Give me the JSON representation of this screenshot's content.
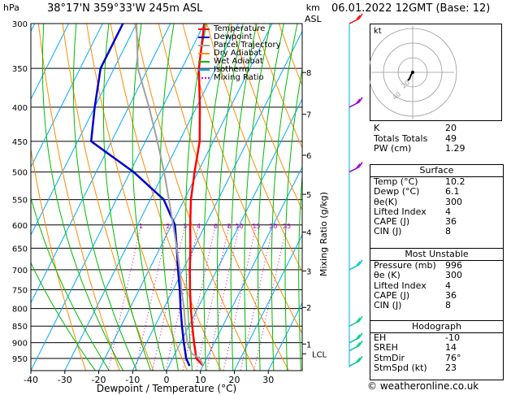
{
  "header": {
    "location": "38°17'N  359°33'W  245m  ASL",
    "date": "06.01.2022  12GMT  (Base: 12)",
    "hpa_label": "hPa",
    "km_label": "km",
    "asl_label": "ASL",
    "mixing_ratio_label": "Mixing Ratio (g/kg)"
  },
  "legend": [
    {
      "label": "Temperature",
      "color": "#ff0000",
      "style": "solid"
    },
    {
      "label": "Dewpoint",
      "color": "#0000cc",
      "style": "solid"
    },
    {
      "label": "Parcel Trajectory",
      "color": "#a0a0a0",
      "style": "solid"
    },
    {
      "label": "Dry Adiabat",
      "color": "#ff8c00",
      "style": "solid"
    },
    {
      "label": "Wet Adiabat",
      "color": "#00bb00",
      "style": "solid"
    },
    {
      "label": "Isotherm",
      "color": "#00aaff",
      "style": "solid"
    },
    {
      "label": "Mixing Ratio",
      "color": "#cc00cc",
      "style": "dotted"
    }
  ],
  "hodograph": {
    "unit_label": "kt",
    "ring_labels": [
      "20",
      "40"
    ]
  },
  "indices": [
    {
      "key": "K",
      "value": "20"
    },
    {
      "key": "Totals Totals",
      "value": "49"
    },
    {
      "key": "PW (cm)",
      "value": "1.29"
    }
  ],
  "surface": {
    "title": "Surface",
    "rows": [
      {
        "key": "Temp (°C)",
        "value": "10.2"
      },
      {
        "key": "Dewp (°C)",
        "value": "6.1"
      },
      {
        "key": "θe(K)",
        "value": "300"
      },
      {
        "key": "Lifted Index",
        "value": "4"
      },
      {
        "key": "CAPE (J)",
        "value": "36"
      },
      {
        "key": "CIN (J)",
        "value": "8"
      }
    ]
  },
  "most_unstable": {
    "title": "Most Unstable",
    "rows": [
      {
        "key": "Pressure (mb)",
        "value": "996"
      },
      {
        "key": "θe (K)",
        "value": "300"
      },
      {
        "key": "Lifted Index",
        "value": "4"
      },
      {
        "key": "CAPE (J)",
        "value": "36"
      },
      {
        "key": "CIN (J)",
        "value": "8"
      }
    ]
  },
  "hodograph_box": {
    "title": "Hodograph",
    "rows": [
      {
        "key": "EH",
        "value": "-10"
      },
      {
        "key": "SREH",
        "value": "14"
      },
      {
        "key": "StmDir",
        "value": "76°"
      },
      {
        "key": "StmSpd (kt)",
        "value": "23"
      }
    ]
  },
  "copyright": "© weatheronline.co.uk",
  "chart_data": {
    "type": "line",
    "xlabel": "Dewpoint / Temperature (°C)",
    "ylabel": "hPa",
    "x_ticks": [
      -40,
      -30,
      -20,
      -10,
      0,
      10,
      20,
      30
    ],
    "pressure_levels": [
      300,
      350,
      400,
      450,
      500,
      550,
      600,
      650,
      700,
      750,
      800,
      850,
      900,
      950
    ],
    "km_ticks": [
      {
        "label": "8",
        "p": 355
      },
      {
        "label": "7",
        "p": 410
      },
      {
        "label": "6",
        "p": 472
      },
      {
        "label": "5",
        "p": 540
      },
      {
        "label": "4",
        "p": 615
      },
      {
        "label": "3",
        "p": 703
      },
      {
        "label": "2",
        "p": 797
      },
      {
        "label": "1",
        "p": 904
      },
      {
        "label": "LCL",
        "p": 935
      }
    ],
    "mixing_ratio_labels": [
      "1",
      "2",
      "3",
      "4",
      "6",
      "8",
      "10",
      "15",
      "20",
      "25"
    ],
    "series": [
      {
        "name": "Temperature",
        "color": "#ff0000",
        "points": [
          [
            10.2,
            975
          ],
          [
            7,
            950
          ],
          [
            4,
            900
          ],
          [
            1,
            850
          ],
          [
            -2,
            800
          ],
          [
            -5,
            750
          ],
          [
            -8,
            700
          ],
          [
            -11,
            650
          ],
          [
            -14.5,
            600
          ],
          [
            -18,
            550
          ],
          [
            -21,
            500
          ],
          [
            -24,
            450
          ],
          [
            -29,
            400
          ],
          [
            -35,
            350
          ],
          [
            -40,
            300
          ]
        ]
      },
      {
        "name": "Dewpoint",
        "color": "#0000cc",
        "points": [
          [
            6.1,
            975
          ],
          [
            4,
            950
          ],
          [
            1,
            900
          ],
          [
            -2,
            850
          ],
          [
            -5,
            800
          ],
          [
            -8,
            750
          ],
          [
            -11.5,
            700
          ],
          [
            -15,
            650
          ],
          [
            -19,
            600
          ],
          [
            -26,
            550
          ],
          [
            -39,
            500
          ],
          [
            -56,
            450
          ],
          [
            -60,
            400
          ],
          [
            -64,
            350
          ],
          [
            -64,
            300
          ]
        ]
      },
      {
        "name": "Parcel Trajectory",
        "color": "#a0a0a0",
        "points": [
          [
            10.2,
            975
          ],
          [
            8,
            950
          ],
          [
            5,
            935
          ],
          [
            2,
            900
          ],
          [
            -1,
            850
          ],
          [
            -4,
            800
          ],
          [
            -7.5,
            750
          ],
          [
            -11,
            700
          ],
          [
            -15,
            650
          ],
          [
            -19.5,
            600
          ],
          [
            -24.5,
            550
          ],
          [
            -30,
            500
          ],
          [
            -36.5,
            450
          ],
          [
            -44,
            400
          ],
          [
            -53,
            350
          ],
          [
            -60,
            300
          ]
        ]
      }
    ],
    "wind_barb_levels": [
      300,
      400,
      500,
      700,
      850,
      900,
      925,
      975
    ]
  }
}
